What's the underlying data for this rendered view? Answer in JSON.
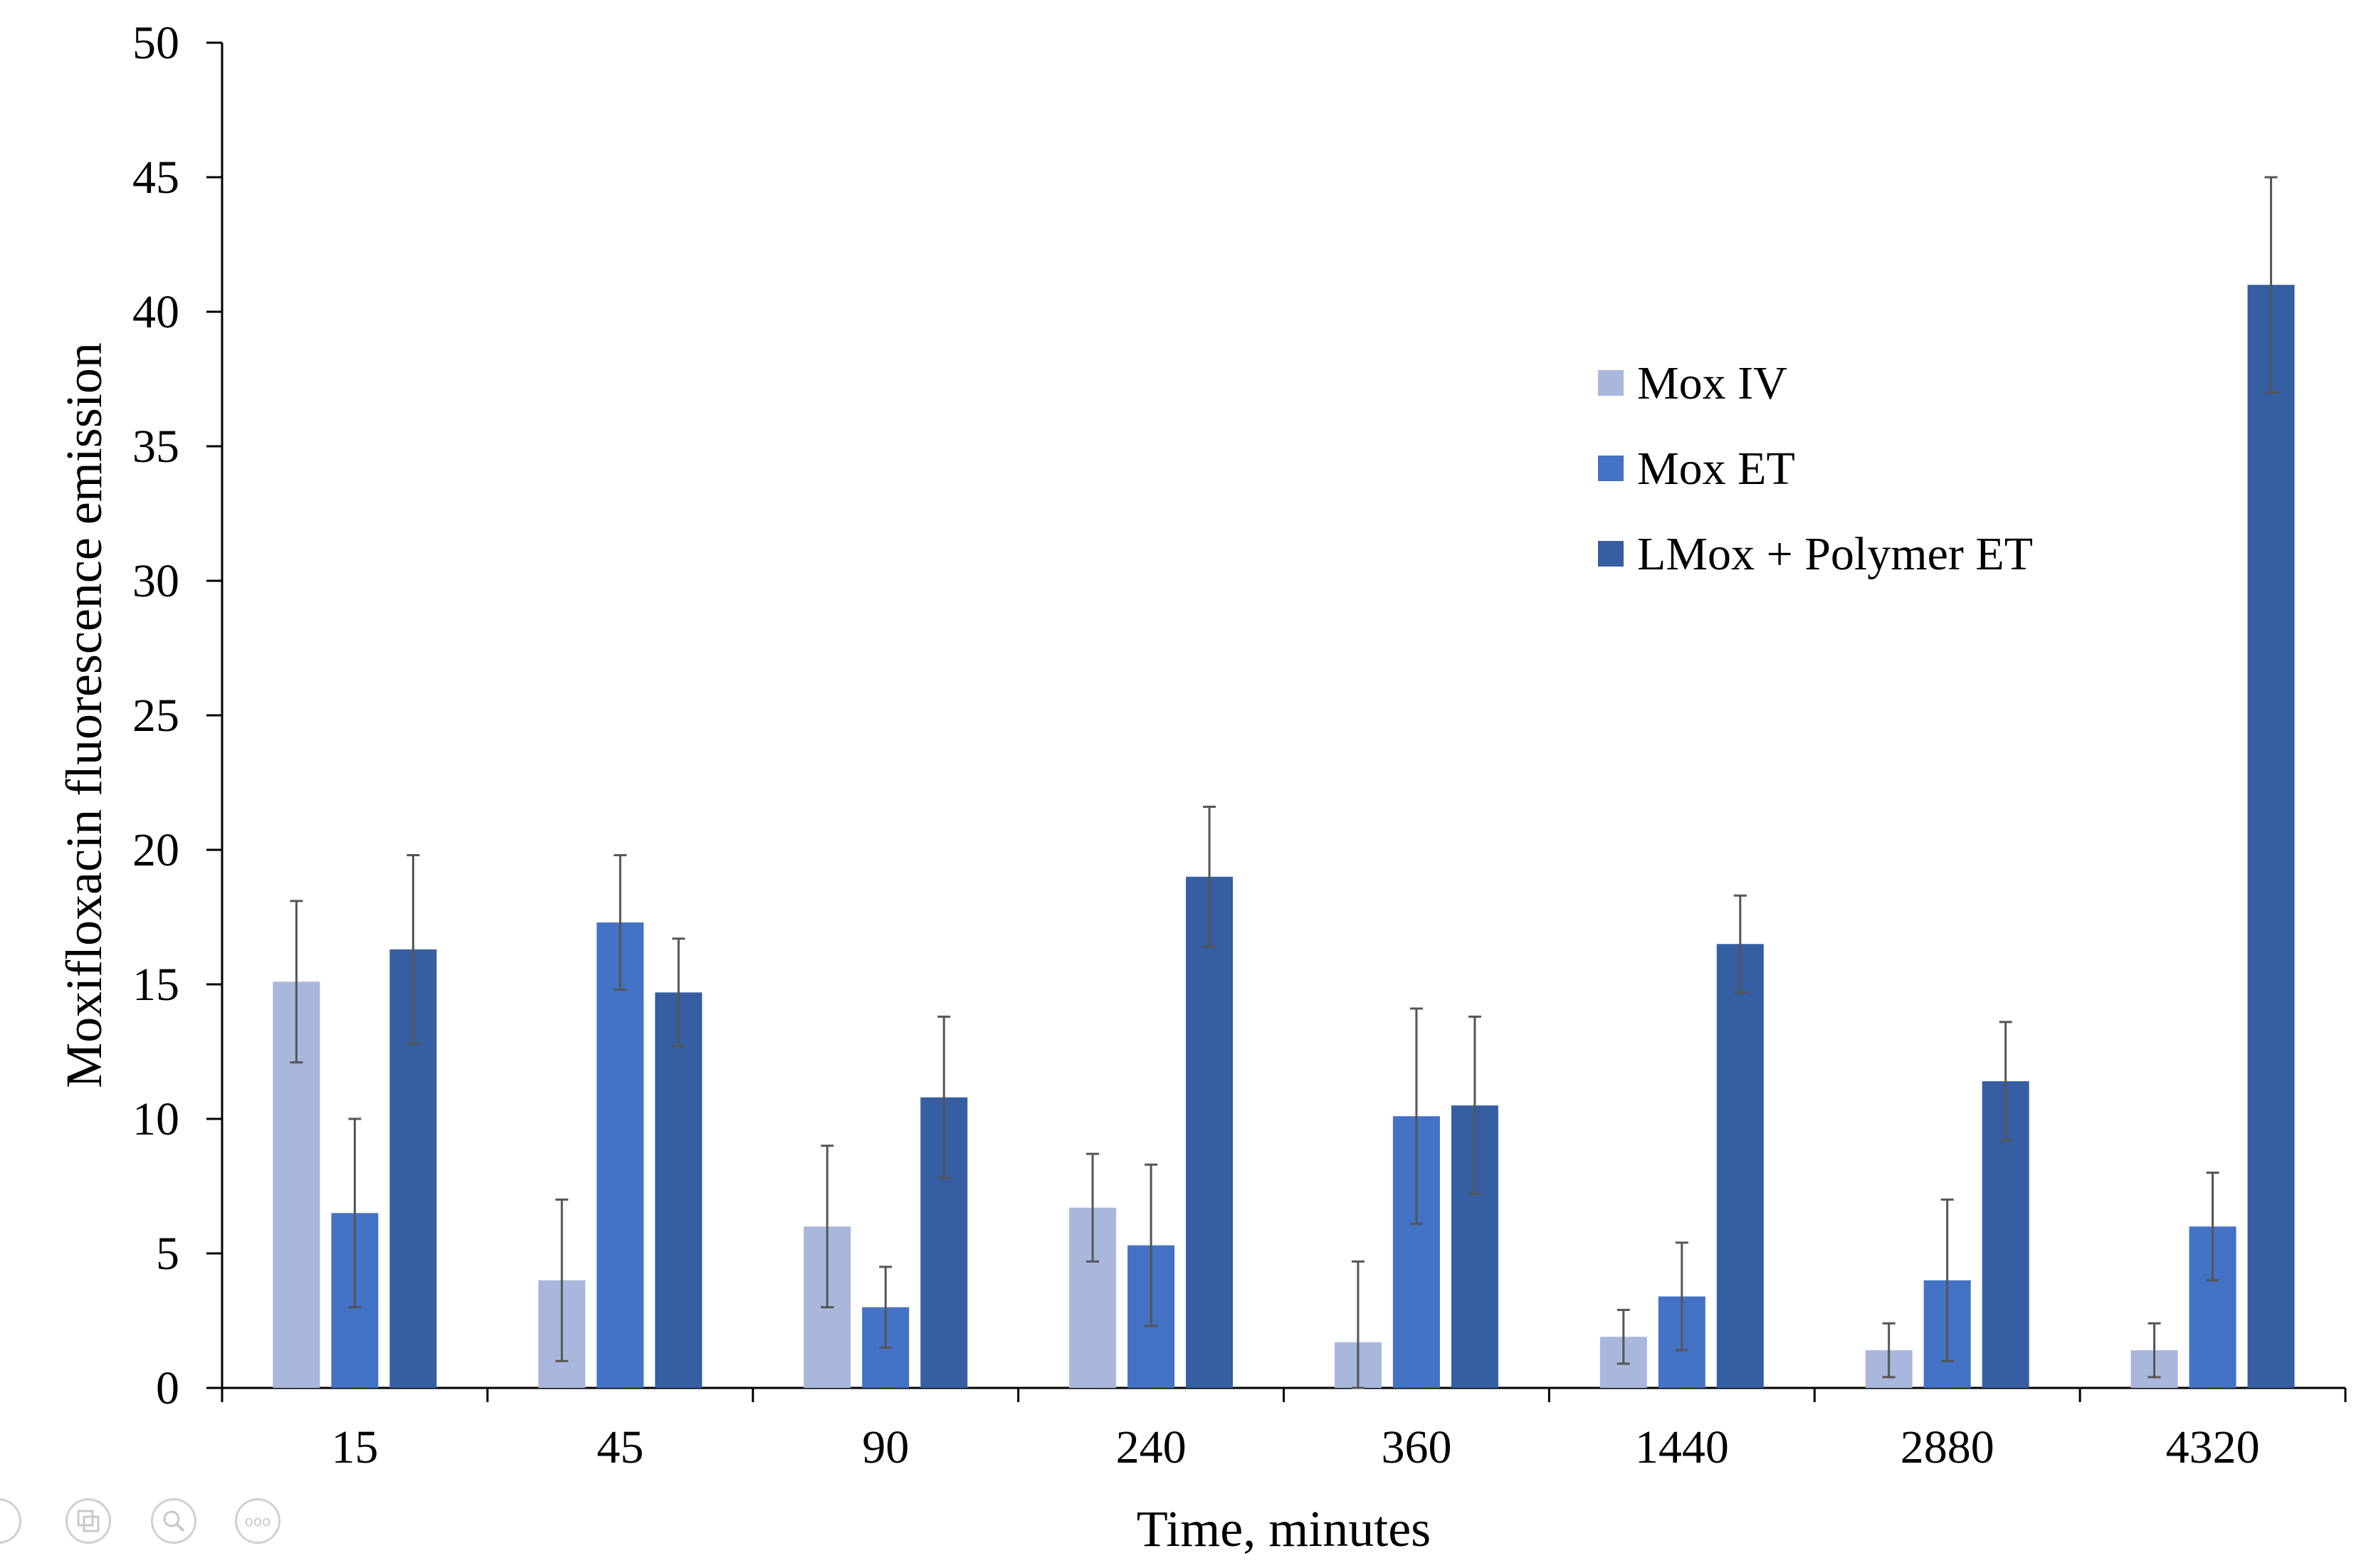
{
  "chart_data": {
    "type": "bar",
    "title": "",
    "xlabel": "Time, minutes",
    "ylabel": "Moxifloxacin fluorescence emission",
    "categories": [
      "15",
      "45",
      "90",
      "240",
      "360",
      "1440",
      "2880",
      "4320"
    ],
    "ylim": [
      0,
      50
    ],
    "yticks": [
      0,
      5,
      10,
      15,
      20,
      25,
      30,
      35,
      40,
      45,
      50
    ],
    "grid": false,
    "legend_position": "right",
    "series": [
      {
        "name": "Mox IV",
        "color": "#a9b7dc",
        "values": [
          15.1,
          4.0,
          6.0,
          6.7,
          1.7,
          1.9,
          1.4,
          1.4
        ],
        "errors": [
          3.0,
          3.0,
          3.0,
          2.0,
          3.0,
          1.0,
          1.0,
          1.0
        ]
      },
      {
        "name": "Mox ET",
        "color": "#4472c4",
        "values": [
          6.5,
          17.3,
          3.0,
          5.3,
          10.1,
          3.4,
          4.0,
          6.0
        ],
        "errors": [
          3.5,
          2.5,
          1.5,
          3.0,
          4.0,
          2.0,
          3.0,
          2.0
        ]
      },
      {
        "name": "LMox + Polymer ET",
        "color": "#355fa2",
        "values": [
          16.3,
          14.7,
          10.8,
          19.0,
          10.5,
          16.5,
          11.4,
          41.0
        ],
        "errors": [
          3.5,
          2.0,
          3.0,
          2.6,
          3.3,
          1.8,
          2.2,
          4.0
        ]
      }
    ]
  },
  "viewer_controls": {
    "icons": [
      "previous-icon",
      "pages-icon",
      "zoom-icon",
      "more-icon"
    ],
    "more_label": "ooo"
  }
}
